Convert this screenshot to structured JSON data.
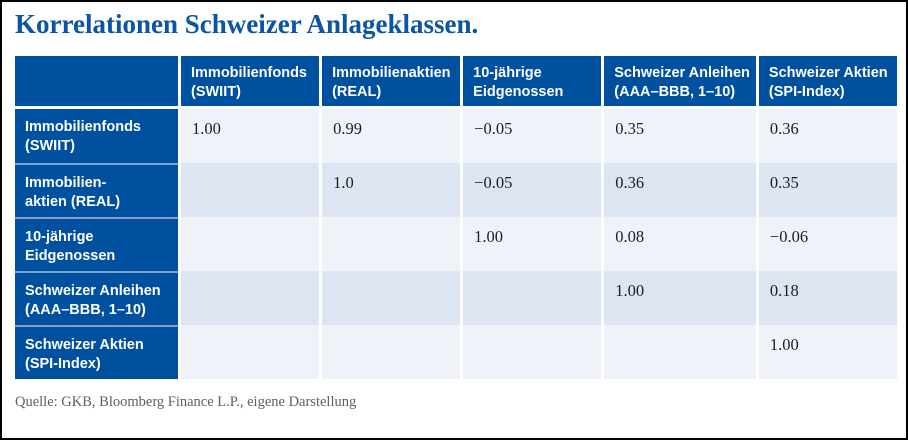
{
  "title": "Korrelationen Schweizer Anlageklassen.",
  "source": "Quelle: GKB, Bloomberg Finance L.P., eigene Darstellung",
  "colors": {
    "brand_blue": "#0050a0",
    "title_blue": "#0b55a4",
    "row_light": "#eff3f9",
    "row_shaded": "#dce5f1",
    "source_gray": "#5b6067"
  },
  "table": {
    "col_headers": [
      {
        "lines": [
          "Immobilienfonds",
          "(SWIIT)"
        ]
      },
      {
        "lines": [
          "Immobilienaktien",
          "(REAL)"
        ]
      },
      {
        "lines": [
          "10-jährige",
          "Eidgenossen"
        ]
      },
      {
        "lines": [
          "Schweizer Anleihen",
          "(AAA–BBB, 1–10)"
        ]
      },
      {
        "lines": [
          "Schweizer Aktien",
          "(SPI-Index)"
        ]
      }
    ],
    "rows": [
      {
        "label": {
          "lines": [
            "Immobilienfonds",
            "(SWIIT)"
          ]
        },
        "values": [
          "1.00",
          "0.99",
          "−0.05",
          "0.35",
          "0.36"
        ]
      },
      {
        "label": {
          "lines": [
            "Immobilien-",
            "aktien (REAL)"
          ]
        },
        "values": [
          "",
          "1.0",
          "−0.05",
          "0.36",
          "0.35"
        ]
      },
      {
        "label": {
          "lines": [
            "10-jährige",
            "Eidgenossen"
          ]
        },
        "values": [
          "",
          "",
          "1.00",
          "0.08",
          "−0.06"
        ]
      },
      {
        "label": {
          "lines": [
            "Schweizer Anleihen",
            "(AAA–BBB, 1–10)"
          ]
        },
        "values": [
          "",
          "",
          "",
          "1.00",
          "0.18"
        ]
      },
      {
        "label": {
          "lines": [
            "Schweizer Aktien",
            "(SPI-Index)"
          ]
        },
        "values": [
          "",
          "",
          "",
          "",
          "1.00"
        ]
      }
    ]
  },
  "chart_data": {
    "type": "table",
    "title": "Korrelationen Schweizer Anlageklassen.",
    "columns": [
      "Immobilienfonds (SWIIT)",
      "Immobilienaktien (REAL)",
      "10-jährige Eidgenossen",
      "Schweizer Anleihen (AAA–BBB, 1–10)",
      "Schweizer Aktien (SPI-Index)"
    ],
    "rows": [
      "Immobilienfonds (SWIIT)",
      "Immobilien-aktien (REAL)",
      "10-jährige Eidgenossen",
      "Schweizer Anleihen (AAA–BBB, 1–10)",
      "Schweizer Aktien (SPI-Index)"
    ],
    "matrix": [
      [
        1.0,
        0.99,
        -0.05,
        0.35,
        0.36
      ],
      [
        null,
        1.0,
        -0.05,
        0.36,
        0.35
      ],
      [
        null,
        null,
        1.0,
        0.08,
        -0.06
      ],
      [
        null,
        null,
        null,
        1.0,
        0.18
      ],
      [
        null,
        null,
        null,
        null,
        1.0
      ]
    ],
    "source": "Quelle: GKB, Bloomberg Finance L.P., eigene Darstellung"
  }
}
